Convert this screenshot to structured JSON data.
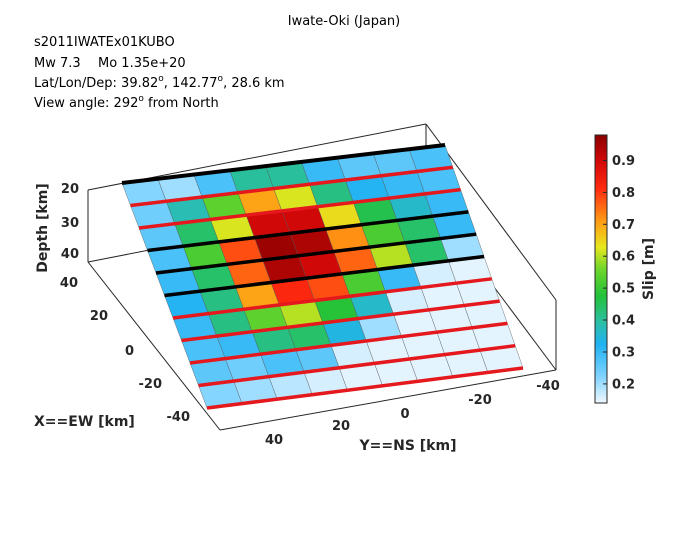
{
  "title": "Iwate-Oki (Japan)",
  "info": {
    "event_id": "s2011IWATEx01KUBO",
    "mw_label": "Mw 7.3",
    "mo_label": "Mo 1.35e+20",
    "latlondep_prefix": "Lat/Lon/Dep: 39.82",
    "lon_value": ", 142.77",
    "dep_value": ", 28.6 km",
    "deg_symbol": "o",
    "view_prefix": "View angle: 292",
    "view_suffix": " from North"
  },
  "colors": {
    "grid_line": "#000000",
    "red_edge": "#e5191d",
    "box": "#262626"
  },
  "chart_data": {
    "type": "heatmap",
    "title": "Iwate-Oki (Japan)",
    "xlabel": "X==EW [km]",
    "ylabel": "Y==NS [km]",
    "zlabel": "Depth [km]",
    "colorbar_label": "Slip [m]",
    "x_ticks": [
      "40",
      "20",
      "0",
      "-20",
      "-40"
    ],
    "y_ticks": [
      "40",
      "20",
      "0",
      "-20",
      "-40"
    ],
    "z_ticks": [
      "20",
      "30",
      "40"
    ],
    "colorbar_ticks": [
      "0.9",
      "0.8",
      "0.7",
      "0.6",
      "0.5",
      "0.4",
      "0.3",
      "0.2"
    ],
    "clim": [
      0.14,
      0.98
    ],
    "colormap": "jet-like",
    "rows": 10,
    "cols": 9,
    "slip": [
      [
        0.22,
        0.2,
        0.28,
        0.4,
        0.4,
        0.3,
        0.26,
        0.26,
        0.28
      ],
      [
        0.24,
        0.38,
        0.54,
        0.7,
        0.62,
        0.42,
        0.32,
        0.3,
        0.28
      ],
      [
        0.26,
        0.44,
        0.62,
        0.9,
        0.9,
        0.64,
        0.46,
        0.36,
        0.3
      ],
      [
        0.28,
        0.52,
        0.78,
        0.96,
        0.94,
        0.72,
        0.52,
        0.44,
        0.3
      ],
      [
        0.3,
        0.44,
        0.76,
        0.94,
        0.9,
        0.76,
        0.6,
        0.44,
        0.2
      ],
      [
        0.32,
        0.42,
        0.7,
        0.82,
        0.78,
        0.52,
        0.3,
        0.16,
        0.15
      ],
      [
        0.3,
        0.42,
        0.54,
        0.6,
        0.48,
        0.36,
        0.16,
        0.15,
        0.15
      ],
      [
        0.28,
        0.3,
        0.42,
        0.44,
        0.34,
        0.2,
        0.15,
        0.15,
        0.15
      ],
      [
        0.26,
        0.24,
        0.28,
        0.26,
        0.16,
        0.15,
        0.15,
        0.15,
        0.15
      ],
      [
        0.22,
        0.2,
        0.18,
        0.16,
        0.15,
        0.15,
        0.15,
        0.15,
        0.15
      ]
    ],
    "red_edge_rows": [
      1,
      2,
      6,
      7,
      8,
      9,
      10
    ]
  }
}
